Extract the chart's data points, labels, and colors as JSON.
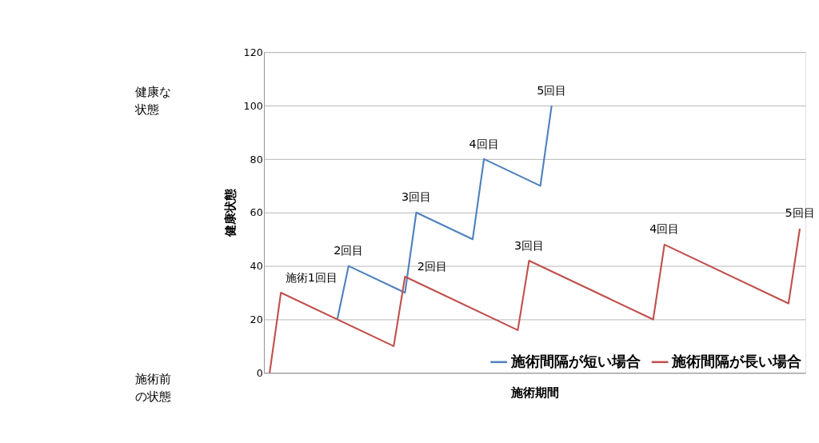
{
  "chart_data": {
    "type": "line",
    "xlabel": "施術期間",
    "ylabel": "健康状態",
    "categories": [
      null,
      null,
      null,
      null,
      null,
      null,
      null,
      null,
      null,
      null,
      null,
      null,
      null,
      null,
      null,
      null,
      null,
      null,
      null,
      null,
      null,
      null,
      null,
      null,
      null,
      null,
      null,
      null,
      null,
      null,
      null,
      null,
      null,
      null,
      null,
      null,
      null,
      null,
      null,
      null,
      null,
      null,
      null,
      null,
      null,
      null,
      null,
      null
    ],
    "ylim": [
      0,
      120
    ],
    "yticks": [
      0,
      20,
      40,
      60,
      80,
      100,
      120
    ],
    "grid": "y",
    "legend": "bottom right",
    "line_style": "solid",
    "series": [
      {
        "name": "施術間隔が短い場合",
        "color": "#4f81bd",
        "values": [
          null,
          null,
          null,
          null,
          null,
          null,
          20,
          40,
          null,
          null,
          null,
          null,
          30,
          60,
          null,
          null,
          null,
          null,
          50,
          80,
          null,
          null,
          null,
          null,
          70,
          100,
          null,
          null,
          null,
          null,
          null,
          null,
          null,
          null,
          null,
          null,
          null,
          null,
          null,
          null,
          null,
          null,
          null,
          null,
          null,
          null,
          null,
          null
        ]
      },
      {
        "name": "施術間隔が長い場合",
        "color": "#c0504d",
        "values": [
          0,
          30,
          null,
          null,
          null,
          null,
          null,
          null,
          null,
          null,
          null,
          10,
          36,
          null,
          null,
          null,
          null,
          null,
          null,
          null,
          null,
          null,
          16,
          42,
          null,
          null,
          null,
          null,
          null,
          null,
          null,
          null,
          null,
          null,
          20,
          48,
          null,
          null,
          null,
          null,
          null,
          null,
          null,
          null,
          null,
          null,
          26,
          54
        ]
      }
    ],
    "annotations": [
      "施術1回目",
      "2回目",
      "3回目",
      "4回目",
      "5回目",
      "2回目",
      "3回目",
      "4回目",
      "5回目",
      "健康な状態",
      "施術前の状態"
    ]
  }
}
